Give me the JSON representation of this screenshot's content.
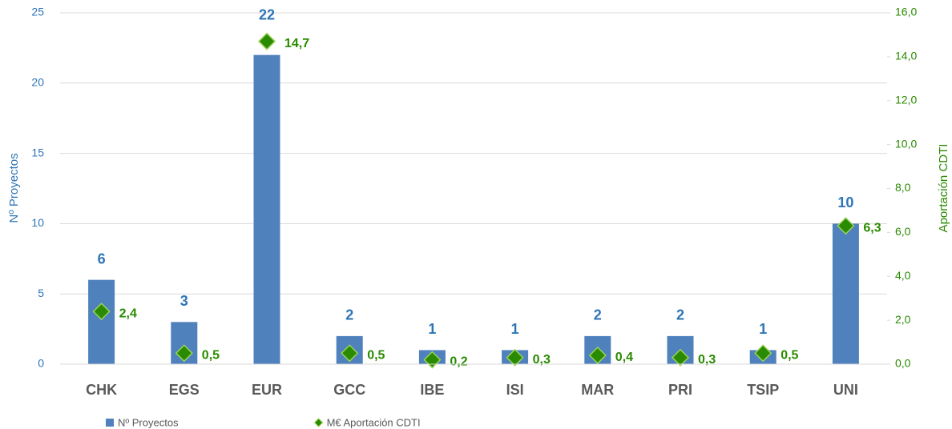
{
  "chart_data": {
    "type": "bar",
    "categories": [
      "CHK",
      "EGS",
      "EUR",
      "GCC",
      "IBE",
      "ISI",
      "MAR",
      "PRI",
      "TSIP",
      "UNI"
    ],
    "series": [
      {
        "name": "Nº Proyectos",
        "type": "bar",
        "color": "#4f81bd",
        "values": [
          6,
          3,
          22,
          2,
          1,
          1,
          2,
          2,
          1,
          10
        ]
      },
      {
        "name": "M€ Aportación CDTI",
        "type": "scatter",
        "axis": "y2",
        "color": "#2a8a00",
        "values": [
          2.4,
          0.5,
          14.7,
          0.5,
          0.2,
          0.3,
          0.4,
          0.3,
          0.5,
          6.3
        ],
        "value_labels": [
          "2,4",
          "0,5",
          "14,7",
          "0,5",
          "0,2",
          "0,3",
          "0,4",
          "0,3",
          "0,5",
          "6,3"
        ]
      }
    ],
    "ylabel": "Nº Proyectos",
    "y2label": "Aportación CDTI",
    "ylim": [
      0,
      25
    ],
    "yticks": [
      0,
      5,
      10,
      15,
      20,
      25
    ],
    "y2lim": [
      0,
      16
    ],
    "y2ticks": [
      {
        "value": 0,
        "label": "0,0"
      },
      {
        "value": 2,
        "label": "2,0"
      },
      {
        "value": 4,
        "label": "4,0"
      },
      {
        "value": 6,
        "label": "6,0"
      },
      {
        "value": 8,
        "label": "8,0"
      },
      {
        "value": 10,
        "label": "10,0"
      },
      {
        "value": 12,
        "label": "12,0"
      },
      {
        "value": 14,
        "label": "14,0"
      },
      {
        "value": 16,
        "label": "16,0"
      }
    ],
    "grid": true,
    "legend": "bottom-left"
  }
}
